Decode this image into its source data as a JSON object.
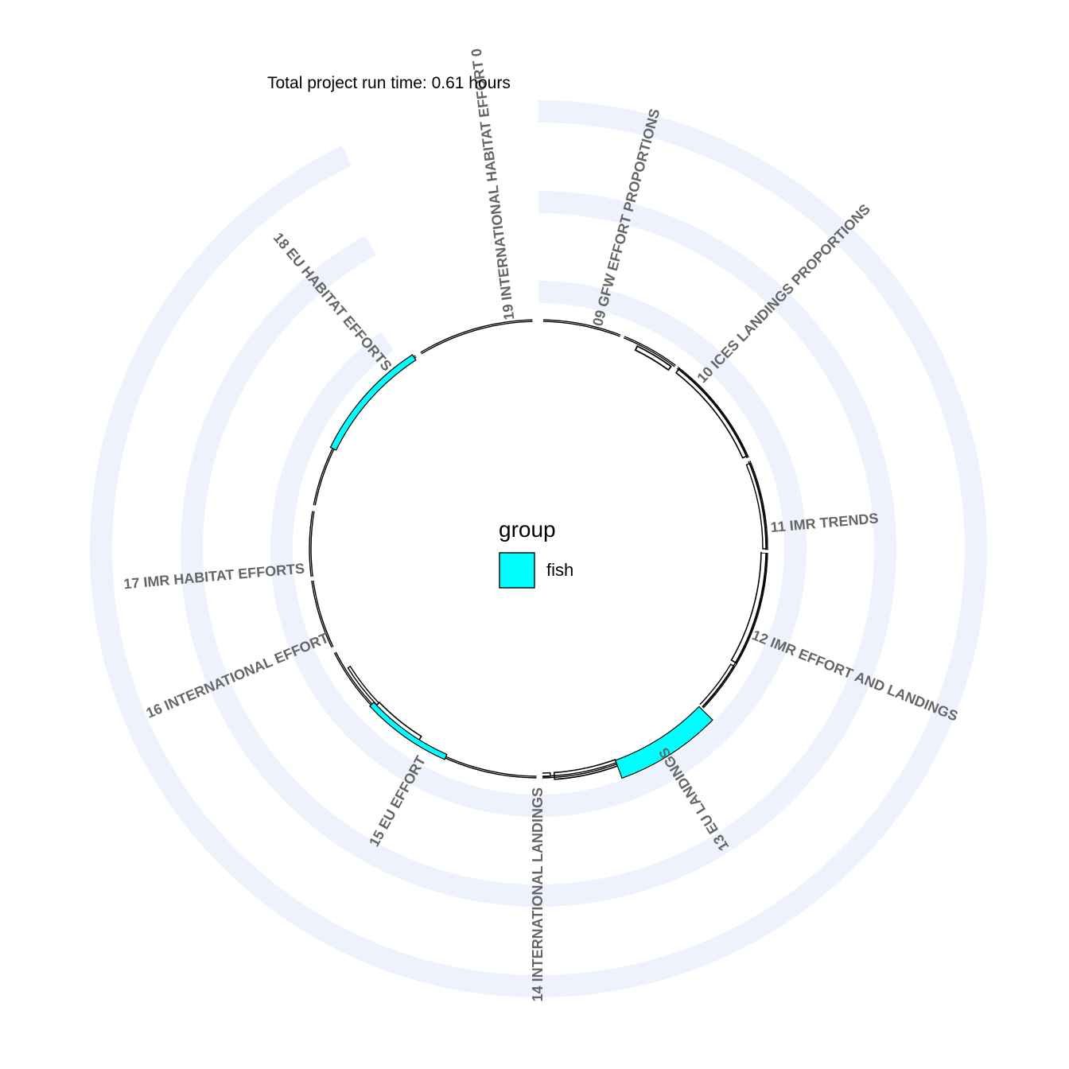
{
  "chart_data": {
    "type": "radial-bar",
    "title": "",
    "annotation": "Total project run time: 0.61 hours",
    "steps": [
      "09 GFW EFFORT PROPORTIONS",
      "10 ICES LANDINGS PROPORTIONS",
      "11 IMR TRENDS",
      "12 IMR EFFORT AND LANDINGS",
      "13 EU LANDINGS",
      "14 INTERNATIONAL LANDINGS",
      "15 EU EFFORT",
      "16 INTERNATIONAL EFFORT",
      "17 IMR HABITAT EFFORTS",
      "18 EU HABITAT EFFORTS",
      "19 INTERNATIONAL HABITAT EFFORT 0"
    ],
    "legend": {
      "title": "group",
      "entries": [
        {
          "name": "fish",
          "color": "#00FFFF"
        }
      ]
    },
    "colors": {
      "highlight": "#00FFFF",
      "background_rings": "#EEF2FC",
      "outline": "#000000",
      "label": "#666666"
    },
    "grid": false
  }
}
